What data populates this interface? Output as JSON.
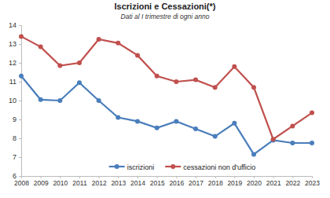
{
  "chart_data": {
    "type": "line",
    "title": "Iscrizioni e Cessazioni(*)",
    "subtitle": "Dati al I trimestre di ogni anno",
    "x": [
      2008,
      2009,
      2010,
      2011,
      2012,
      2013,
      2014,
      2015,
      2016,
      2017,
      2018,
      2019,
      2020,
      2021,
      2022,
      2023
    ],
    "xlim": [
      2008,
      2023
    ],
    "xticks": [
      2008,
      2009,
      2010,
      2011,
      2012,
      2013,
      2014,
      2015,
      2016,
      2017,
      2018,
      2019,
      2020,
      2021,
      2022,
      2023
    ],
    "ylim": [
      6,
      14
    ],
    "yticks": [
      6,
      7,
      8,
      9,
      10,
      11,
      12,
      13,
      14
    ],
    "grid": false,
    "legend": "bottom",
    "series": [
      {
        "name": "iscrizioni",
        "color": "#4a7ebb",
        "marker": "circle",
        "values": [
          11.3,
          10.05,
          10.0,
          10.95,
          10.0,
          9.1,
          8.9,
          8.55,
          8.9,
          8.5,
          8.1,
          8.8,
          7.15,
          7.9,
          7.75,
          7.75
        ]
      },
      {
        "name": "cessazioni non d'ufficio",
        "color": "#c0504d",
        "marker": "circle",
        "values": [
          13.4,
          12.85,
          11.85,
          12.0,
          13.25,
          13.05,
          12.4,
          11.3,
          11.0,
          11.1,
          10.7,
          11.8,
          10.7,
          7.95,
          8.65,
          9.35
        ]
      }
    ]
  }
}
